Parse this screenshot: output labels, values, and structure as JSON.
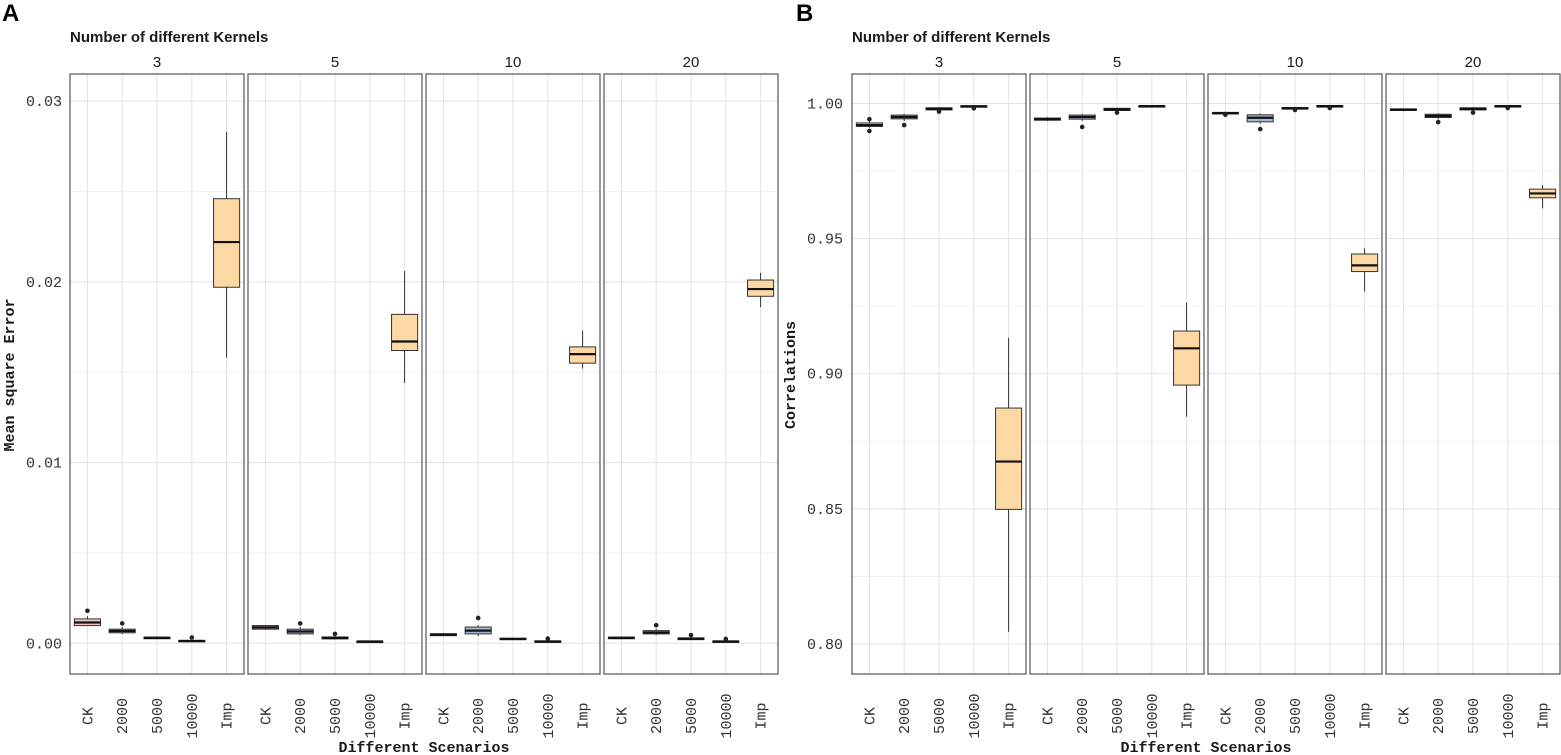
{
  "chart_data": [
    {
      "type": "box",
      "panel_label": "A",
      "facet_title": "Number of different Kernels",
      "xlabel": "Different Scenarios",
      "ylabel": "Mean square Error",
      "ylim": [
        -0.0017,
        0.0315
      ],
      "yticks": [
        0.0,
        0.01,
        0.02,
        0.03
      ],
      "ytick_labels": [
        "0.00",
        "0.01",
        "0.02",
        "0.03"
      ],
      "categories": [
        "CK",
        "2000",
        "5000",
        "10000",
        "Imp"
      ],
      "fills": [
        "#f2c4c0",
        "#a9b6d2",
        "#ffffff",
        "#ffffff",
        "#fcd9a4"
      ],
      "facets": [
        {
          "label": "3",
          "boxes": [
            {
              "category": "CK",
              "q1": 0.00098,
              "median": 0.00115,
              "q3": 0.00135,
              "lo": 0.00095,
              "hi": 0.0015,
              "outliers": [
                0.0018
              ]
            },
            {
              "category": "2000",
              "q1": 0.00058,
              "median": 0.00068,
              "q3": 0.00078,
              "lo": 0.0005,
              "hi": 0.0009,
              "outliers": [
                0.0011
              ]
            },
            {
              "category": "5000",
              "q1": 0.00025,
              "median": 0.0003,
              "q3": 0.00034,
              "lo": 0.00022,
              "hi": 0.00036,
              "outliers": []
            },
            {
              "category": "10000",
              "q1": 0.0001,
              "median": 0.00013,
              "q3": 0.00016,
              "lo": 8e-05,
              "hi": 0.00018,
              "outliers": [
                0.00032
              ]
            },
            {
              "category": "Imp",
              "q1": 0.0197,
              "median": 0.0222,
              "q3": 0.0246,
              "lo": 0.0158,
              "hi": 0.0283,
              "outliers": []
            }
          ]
        },
        {
          "label": "5",
          "boxes": [
            {
              "category": "CK",
              "q1": 0.00078,
              "median": 0.00088,
              "q3": 0.00098,
              "lo": 0.00075,
              "hi": 0.001,
              "outliers": []
            },
            {
              "category": "2000",
              "q1": 0.00052,
              "median": 0.00065,
              "q3": 0.00078,
              "lo": 0.00045,
              "hi": 0.0009,
              "outliers": [
                0.0011
              ]
            },
            {
              "category": "5000",
              "q1": 0.00024,
              "median": 0.0003,
              "q3": 0.00035,
              "lo": 0.0002,
              "hi": 0.0004,
              "outliers": [
                0.00052
              ]
            },
            {
              "category": "10000",
              "q1": 8e-05,
              "median": 0.0001,
              "q3": 0.00012,
              "lo": 6e-05,
              "hi": 0.00014,
              "outliers": []
            },
            {
              "category": "Imp",
              "q1": 0.0162,
              "median": 0.0167,
              "q3": 0.0182,
              "lo": 0.0144,
              "hi": 0.0206,
              "outliers": []
            }
          ]
        },
        {
          "label": "10",
          "boxes": [
            {
              "category": "CK",
              "q1": 0.00042,
              "median": 0.00048,
              "q3": 0.00053,
              "lo": 0.0004,
              "hi": 0.00055,
              "outliers": []
            },
            {
              "category": "2000",
              "q1": 0.00052,
              "median": 0.0007,
              "q3": 0.0009,
              "lo": 0.0004,
              "hi": 0.001,
              "outliers": [
                0.0014
              ]
            },
            {
              "category": "5000",
              "q1": 0.0002,
              "median": 0.00024,
              "q3": 0.00028,
              "lo": 0.00018,
              "hi": 0.0003,
              "outliers": []
            },
            {
              "category": "10000",
              "q1": 8e-05,
              "median": 0.0001,
              "q3": 0.00013,
              "lo": 6e-05,
              "hi": 0.00015,
              "outliers": [
                0.00026
              ]
            },
            {
              "category": "Imp",
              "q1": 0.0155,
              "median": 0.016,
              "q3": 0.0164,
              "lo": 0.0152,
              "hi": 0.0173,
              "outliers": []
            }
          ]
        },
        {
          "label": "20",
          "boxes": [
            {
              "category": "CK",
              "q1": 0.00025,
              "median": 0.0003,
              "q3": 0.00034,
              "lo": 0.00022,
              "hi": 0.00036,
              "outliers": []
            },
            {
              "category": "2000",
              "q1": 0.00052,
              "median": 0.0006,
              "q3": 0.0007,
              "lo": 0.00045,
              "hi": 0.0008,
              "outliers": [
                0.001
              ]
            },
            {
              "category": "5000",
              "q1": 0.0002,
              "median": 0.00025,
              "q3": 0.0003,
              "lo": 0.00018,
              "hi": 0.00032,
              "outliers": [
                0.00045
              ]
            },
            {
              "category": "10000",
              "q1": 8e-05,
              "median": 0.0001,
              "q3": 0.00013,
              "lo": 6e-05,
              "hi": 0.00015,
              "outliers": [
                0.00024
              ]
            },
            {
              "category": "Imp",
              "q1": 0.0192,
              "median": 0.0196,
              "q3": 0.0201,
              "lo": 0.0186,
              "hi": 0.0205,
              "outliers": []
            }
          ]
        }
      ]
    },
    {
      "type": "box",
      "panel_label": "B",
      "facet_title": "Number of different Kernels",
      "xlabel": "Different Scenarios",
      "ylabel": "Correlations",
      "ylim": [
        0.7889,
        1.0109
      ],
      "yticks": [
        0.8,
        0.85,
        0.9,
        0.95,
        1.0
      ],
      "ytick_labels": [
        "0.80",
        "0.85",
        "0.90",
        "0.95",
        "1.00"
      ],
      "categories": [
        "CK",
        "2000",
        "5000",
        "10000",
        "Imp"
      ],
      "fills": [
        "#f2c4c0",
        "#a9b6d2",
        "#ffffff",
        "#ffffff",
        "#fcd9a4"
      ],
      "facets": [
        {
          "label": "3",
          "boxes": [
            {
              "category": "CK",
              "q1": 0.9915,
              "median": 0.992,
              "q3": 0.9928,
              "lo": 0.991,
              "hi": 0.9935,
              "outliers": [
                0.9898,
                0.9942
              ]
            },
            {
              "category": "2000",
              "q1": 0.9943,
              "median": 0.995,
              "q3": 0.9957,
              "lo": 0.9935,
              "hi": 0.9962,
              "outliers": [
                0.992
              ]
            },
            {
              "category": "5000",
              "q1": 0.9976,
              "median": 0.998,
              "q3": 0.9984,
              "lo": 0.9972,
              "hi": 0.9987,
              "outliers": [
                0.997
              ]
            },
            {
              "category": "10000",
              "q1": 0.9986,
              "median": 0.9989,
              "q3": 0.9992,
              "lo": 0.9983,
              "hi": 0.9994,
              "outliers": [
                0.9982
              ]
            },
            {
              "category": "Imp",
              "q1": 0.8498,
              "median": 0.8675,
              "q3": 0.8873,
              "lo": 0.8045,
              "hi": 0.9133,
              "outliers": []
            }
          ]
        },
        {
          "label": "5",
          "boxes": [
            {
              "category": "CK",
              "q1": 0.9938,
              "median": 0.9942,
              "q3": 0.9946,
              "lo": 0.9935,
              "hi": 0.9949,
              "outliers": []
            },
            {
              "category": "2000",
              "q1": 0.9942,
              "median": 0.995,
              "q3": 0.9957,
              "lo": 0.9935,
              "hi": 0.9962,
              "outliers": [
                0.9913
              ]
            },
            {
              "category": "5000",
              "q1": 0.9974,
              "median": 0.9978,
              "q3": 0.9982,
              "lo": 0.9971,
              "hi": 0.9985,
              "outliers": [
                0.9966
              ]
            },
            {
              "category": "10000",
              "q1": 0.9987,
              "median": 0.999,
              "q3": 0.9992,
              "lo": 0.9985,
              "hi": 0.9994,
              "outliers": []
            },
            {
              "category": "Imp",
              "q1": 0.8958,
              "median": 0.9094,
              "q3": 0.9158,
              "lo": 0.8841,
              "hi": 0.9263,
              "outliers": []
            }
          ]
        },
        {
          "label": "10",
          "boxes": [
            {
              "category": "CK",
              "q1": 0.9961,
              "median": 0.9964,
              "q3": 0.9967,
              "lo": 0.9958,
              "hi": 0.997,
              "outliers": [
                0.9958
              ]
            },
            {
              "category": "2000",
              "q1": 0.9932,
              "median": 0.9947,
              "q3": 0.9958,
              "lo": 0.9925,
              "hi": 0.9963,
              "outliers": [
                0.9905
              ]
            },
            {
              "category": "5000",
              "q1": 0.9979,
              "median": 0.9982,
              "q3": 0.9985,
              "lo": 0.9976,
              "hi": 0.9988,
              "outliers": [
                0.9976
              ]
            },
            {
              "category": "10000",
              "q1": 0.9987,
              "median": 0.999,
              "q3": 0.9992,
              "lo": 0.9985,
              "hi": 0.9994,
              "outliers": [
                0.9983
              ]
            },
            {
              "category": "Imp",
              "q1": 0.9378,
              "median": 0.9401,
              "q3": 0.9443,
              "lo": 0.9304,
              "hi": 0.9464,
              "outliers": []
            }
          ]
        },
        {
          "label": "20",
          "boxes": [
            {
              "category": "CK",
              "q1": 0.9974,
              "median": 0.9977,
              "q3": 0.998,
              "lo": 0.9971,
              "hi": 0.9982,
              "outliers": []
            },
            {
              "category": "2000",
              "q1": 0.9948,
              "median": 0.9954,
              "q3": 0.996,
              "lo": 0.9942,
              "hi": 0.9964,
              "outliers": [
                0.9931
              ]
            },
            {
              "category": "5000",
              "q1": 0.9976,
              "median": 0.998,
              "q3": 0.9984,
              "lo": 0.9972,
              "hi": 0.9986,
              "outliers": [
                0.9966
              ]
            },
            {
              "category": "10000",
              "q1": 0.9987,
              "median": 0.999,
              "q3": 0.9992,
              "lo": 0.9985,
              "hi": 0.9994,
              "outliers": [
                0.9983
              ]
            },
            {
              "category": "Imp",
              "q1": 0.9651,
              "median": 0.9667,
              "q3": 0.9683,
              "lo": 0.9612,
              "hi": 0.9698,
              "outliers": []
            }
          ]
        }
      ]
    }
  ]
}
